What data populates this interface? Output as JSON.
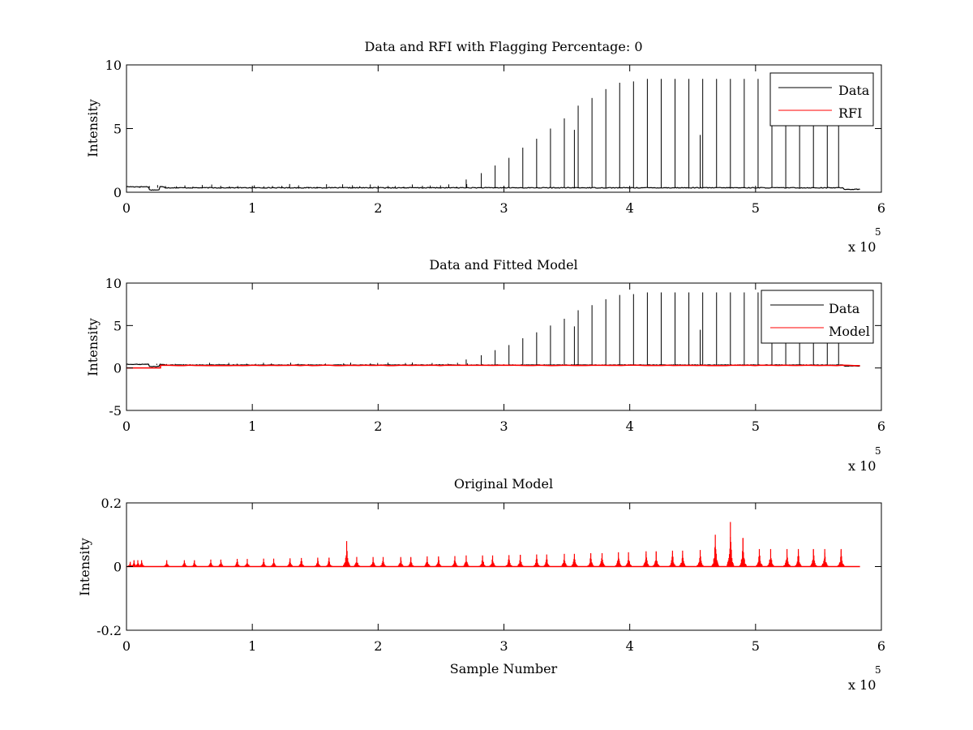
{
  "figure": {
    "background": "#ffffff",
    "axis_color": "#000000"
  },
  "chart_data": [
    {
      "type": "line",
      "title": "Data and RFI with Flagging Percentage: 0",
      "xlabel": "",
      "ylabel": "Intensity",
      "xlim": [
        0,
        600000
      ],
      "ylim": [
        0,
        10
      ],
      "xticks": [
        0,
        1,
        2,
        3,
        4,
        5,
        6
      ],
      "yticks": [
        0,
        5,
        10
      ],
      "x_exponent_label": "x 10",
      "x_exponent": "5",
      "legend": {
        "position": "top-right"
      },
      "grid": false,
      "baseline": 0.35,
      "series": [
        {
          "name": "Data",
          "color": "#000000",
          "spikes": {
            "x": [
              270000,
              282000,
              293000,
              304000,
              315000,
              326000,
              337000,
              348000,
              356000,
              359000,
              370000,
              381000,
              392000,
              403000,
              414000,
              425000,
              436000,
              447000,
              456000,
              458000,
              469000,
              480000,
              491000,
              502000,
              513000,
              524000,
              535000,
              546000,
              557000,
              566000
            ],
            "y": [
              1.0,
              1.5,
              2.1,
              2.7,
              3.5,
              4.2,
              5.0,
              5.8,
              4.9,
              6.8,
              7.4,
              8.1,
              8.6,
              8.7,
              8.9,
              8.9,
              8.9,
              8.9,
              4.5,
              8.9,
              8.9,
              8.9,
              8.9,
              8.9,
              8.9,
              8.9,
              8.9,
              8.9,
              8.9,
              8.9
            ]
          }
        },
        {
          "name": "RFI",
          "color": "#ff0000"
        }
      ]
    },
    {
      "type": "line",
      "title": "Data and Fitted Model",
      "xlabel": "",
      "ylabel": "Intensity",
      "xlim": [
        0,
        600000
      ],
      "ylim": [
        -5,
        10
      ],
      "xticks": [
        0,
        1,
        2,
        3,
        4,
        5,
        6
      ],
      "yticks": [
        -5,
        0,
        5,
        10
      ],
      "x_exponent_label": "x 10",
      "x_exponent": "5",
      "legend": {
        "position": "top-right"
      },
      "grid": false,
      "baseline": 0.35,
      "series": [
        {
          "name": "Data",
          "color": "#000000",
          "spikes": {
            "x": [
              270000,
              282000,
              293000,
              304000,
              315000,
              326000,
              337000,
              348000,
              356000,
              359000,
              370000,
              381000,
              392000,
              403000,
              414000,
              425000,
              436000,
              447000,
              456000,
              458000,
              469000,
              480000,
              491000,
              502000,
              513000,
              524000,
              535000,
              546000,
              557000,
              566000
            ],
            "y": [
              1.0,
              1.5,
              2.1,
              2.7,
              3.5,
              4.2,
              5.0,
              5.8,
              4.9,
              6.8,
              7.4,
              8.1,
              8.6,
              8.7,
              8.9,
              8.9,
              8.9,
              8.9,
              4.5,
              8.9,
              8.9,
              8.9,
              8.9,
              8.9,
              8.9,
              8.9,
              8.9,
              8.9,
              8.9,
              8.9
            ]
          }
        },
        {
          "name": "Model",
          "color": "#ff0000",
          "level": 0.3
        }
      ]
    },
    {
      "type": "line",
      "title": "Original Model",
      "xlabel": "Sample Number",
      "ylabel": "Intensity",
      "xlim": [
        0,
        600000
      ],
      "ylim": [
        -0.2,
        0.2
      ],
      "xticks": [
        0,
        1,
        2,
        3,
        4,
        5,
        6
      ],
      "yticks": [
        -0.2,
        0,
        0.2
      ],
      "ytick_labels": [
        "-0.2",
        "0",
        "0.2"
      ],
      "x_exponent_label": "x 10",
      "x_exponent": "5",
      "grid": false,
      "series": [
        {
          "name": "",
          "color": "#ff0000",
          "peaks": {
            "x": [
              3000,
              6000,
              9000,
              12000,
              32000,
              46000,
              54000,
              67000,
              75000,
              88000,
              96000,
              109000,
              117000,
              130000,
              139000,
              152000,
              161000,
              175000,
              183000,
              196000,
              204000,
              218000,
              226000,
              239000,
              248000,
              261000,
              270000,
              283000,
              291000,
              304000,
              313000,
              326000,
              334000,
              348000,
              356000,
              369000,
              378000,
              391000,
              399000,
              413000,
              421000,
              434000,
              442000,
              456000,
              468000,
              480000,
              490000,
              503000,
              512000,
              525000,
              534000,
              546000,
              555000,
              568000
            ],
            "y": [
              0.015,
              0.02,
              0.02,
              0.02,
              0.02,
              0.02,
              0.02,
              0.022,
              0.022,
              0.024,
              0.024,
              0.025,
              0.025,
              0.026,
              0.027,
              0.028,
              0.028,
              0.08,
              0.03,
              0.03,
              0.03,
              0.03,
              0.03,
              0.032,
              0.032,
              0.033,
              0.035,
              0.035,
              0.035,
              0.036,
              0.037,
              0.038,
              0.038,
              0.04,
              0.04,
              0.042,
              0.042,
              0.045,
              0.045,
              0.048,
              0.048,
              0.05,
              0.05,
              0.052,
              0.1,
              0.14,
              0.09,
              0.055,
              0.055,
              0.055,
              0.055,
              0.055,
              0.055,
              0.055
            ]
          }
        }
      ]
    }
  ]
}
